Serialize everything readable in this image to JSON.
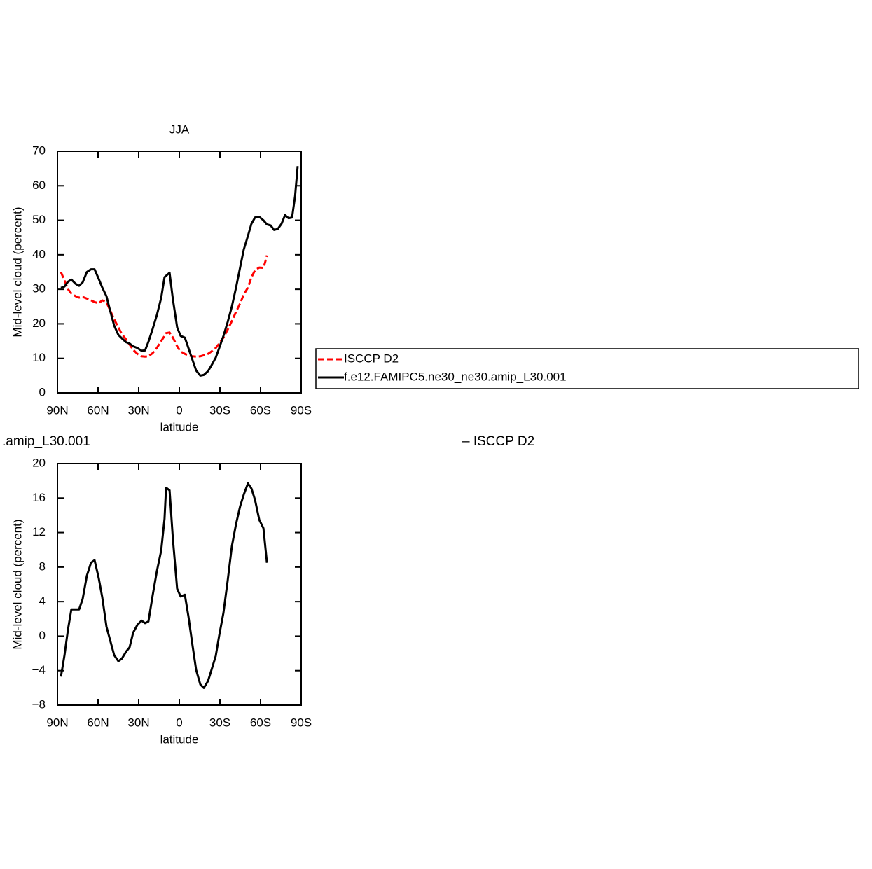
{
  "chart_data": [
    {
      "type": "line",
      "title": "JJA",
      "xlabel": "latitude",
      "ylabel": "Mid-level cloud (percent)",
      "xlim": [
        90,
        -90
      ],
      "ylim": [
        0,
        70
      ],
      "xticks": [
        {
          "value": 90,
          "label": "90N"
        },
        {
          "value": 60,
          "label": "60N"
        },
        {
          "value": 30,
          "label": "30N"
        },
        0,
        {
          "value": -30,
          "label": "30S"
        },
        {
          "value": -60,
          "label": "60S"
        },
        {
          "value": -90,
          "label": "90S"
        }
      ],
      "yticks": [
        0,
        10,
        20,
        30,
        40,
        50,
        60,
        70
      ],
      "legend": "right",
      "series": [
        {
          "name": "ISCCP D2",
          "color": "#ff0000",
          "style": "dashed",
          "x": [
            87.4,
            84.8,
            82.2,
            79.7,
            76.6,
            74.0,
            71.4,
            68.3,
            65.2,
            62.6,
            59.5,
            56.9,
            53.8,
            51.2,
            48.1,
            45.0,
            42.4,
            39.3,
            36.7,
            34.1,
            31.0,
            27.9,
            25.3,
            22.8,
            19.7,
            16.6,
            13.4,
            10.9,
            9.8,
            7.2,
            4.7,
            1.6,
            -1.0,
            -4.1,
            -6.7,
            -9.8,
            -12.4,
            -15.5,
            -18.1,
            -21.2,
            -23.8,
            -26.9,
            -29.5,
            -32.6,
            -35.7,
            -38.8,
            -41.9,
            -45.0,
            -47.6,
            -50.7,
            -53.3,
            -55.9,
            -59.0,
            -62.1,
            -63.5,
            -64.7
          ],
          "values": [
            35,
            32.5,
            30,
            28.8,
            28,
            27.6,
            27.8,
            27.3,
            26.8,
            26.3,
            26,
            26.8,
            26.3,
            24,
            21.3,
            19,
            17,
            15.5,
            14,
            12.5,
            11.3,
            10.6,
            10.5,
            10.6,
            11.5,
            13,
            15,
            16.5,
            17.3,
            17.5,
            16,
            13.5,
            12,
            11.3,
            10.9,
            10.6,
            10.5,
            10.6,
            10.9,
            11.3,
            12,
            13,
            14.3,
            16,
            18.3,
            20.8,
            23.5,
            26,
            28.5,
            30.5,
            33.5,
            35.5,
            36.3,
            36.2,
            38,
            39.8
          ]
        },
        {
          "name": "f.e12.FAMIPC5.ne30_ne30.amip_L30.001",
          "color": "#000000",
          "style": "solid",
          "x": [
            87.4,
            84.8,
            82.2,
            79.7,
            76.6,
            74.0,
            71.4,
            68.3,
            65.2,
            62.6,
            59.5,
            56.9,
            53.8,
            51.2,
            48.1,
            45.0,
            42.4,
            39.3,
            36.7,
            34.1,
            31.0,
            27.9,
            25.3,
            22.8,
            19.7,
            16.6,
            13.4,
            10.9,
            7.2,
            4.7,
            1.6,
            -1.0,
            -4.1,
            -6.7,
            -9.8,
            -12.4,
            -15.5,
            -18.1,
            -21.2,
            -23.8,
            -26.9,
            -29.5,
            -32.6,
            -35.7,
            -38.8,
            -41.9,
            -45.0,
            -47.6,
            -50.7,
            -53.3,
            -55.9,
            -59.0,
            -62.1,
            -64.7,
            -67.5,
            -70.0,
            -72.8,
            -75.5,
            -78.1,
            -80.7,
            -83.3,
            -85.5,
            -87.4
          ],
          "values": [
            30.4,
            30.8,
            32.2,
            32.8,
            31.6,
            31,
            32,
            35,
            35.8,
            35.8,
            33,
            30.5,
            28,
            24,
            19.5,
            16.8,
            15.8,
            14.7,
            14.3,
            13.5,
            13,
            12.2,
            12.3,
            14.8,
            18.5,
            22.5,
            27.5,
            33.5,
            34.8,
            27,
            19,
            16.5,
            16,
            13,
            9.5,
            6.5,
            5,
            5.2,
            6.3,
            8,
            10.2,
            13,
            16.5,
            20.5,
            25,
            30.5,
            36.5,
            41.5,
            45.5,
            49,
            50.8,
            51,
            50,
            48.8,
            48.5,
            47.2,
            47.5,
            49,
            51.5,
            50.6,
            50.8,
            57,
            65.7
          ]
        }
      ]
    },
    {
      "type": "line",
      "title_parts": [
        ".amip_L30.001",
        "– ISCCP D2"
      ],
      "xlabel": "latitude",
      "ylabel": "Mid-level cloud (percent)",
      "xlim": [
        90,
        -90
      ],
      "ylim": [
        -8,
        20
      ],
      "xticks": [
        {
          "value": 90,
          "label": "90N"
        },
        {
          "value": 60,
          "label": "60N"
        },
        {
          "value": 30,
          "label": "30N"
        },
        0,
        {
          "value": -30,
          "label": "30S"
        },
        {
          "value": -60,
          "label": "60S"
        },
        {
          "value": -90,
          "label": "90S"
        }
      ],
      "yticks": [
        {
          "value": -8,
          "label": "−8"
        },
        {
          "value": -4,
          "label": "−4"
        },
        0,
        4,
        8,
        12,
        16,
        20
      ],
      "series": [
        {
          "color": "#000000",
          "style": "solid",
          "x": [
            87.4,
            84.8,
            82.2,
            79.7,
            76.6,
            74.0,
            71.4,
            68.3,
            65.2,
            62.6,
            59.5,
            56.9,
            53.8,
            51.2,
            48.1,
            45.0,
            42.4,
            39.3,
            36.7,
            34.1,
            31.0,
            27.9,
            25.3,
            22.8,
            19.7,
            16.6,
            13.4,
            10.9,
            9.8,
            7.2,
            4.7,
            1.6,
            -1.0,
            -4.1,
            -6.7,
            -9.8,
            -12.4,
            -15.5,
            -18.1,
            -21.2,
            -23.8,
            -26.9,
            -29.5,
            -32.6,
            -35.7,
            -38.8,
            -41.9,
            -45.0,
            -47.6,
            -50.7,
            -53.3,
            -55.9,
            -59.0,
            -62.1,
            -64.7
          ],
          "values": [
            -4.7,
            -2.2,
            0.8,
            3.1,
            3.1,
            3.1,
            4.3,
            7,
            8.5,
            8.8,
            6.7,
            4.5,
            1.1,
            -0.4,
            -2.2,
            -2.9,
            -2.6,
            -1.8,
            -1.3,
            0.4,
            1.3,
            1.8,
            1.5,
            1.7,
            4.7,
            7.5,
            9.9,
            13.6,
            17.2,
            16.9,
            11.2,
            5.5,
            4.6,
            4.8,
            2.3,
            -1.1,
            -3.9,
            -5.6,
            -6,
            -5.2,
            -3.9,
            -2.3,
            0.1,
            2.7,
            6.4,
            10.4,
            13,
            15.1,
            16.4,
            17.7,
            17.1,
            15.8,
            13.5,
            12.5,
            8.5
          ]
        }
      ]
    }
  ]
}
